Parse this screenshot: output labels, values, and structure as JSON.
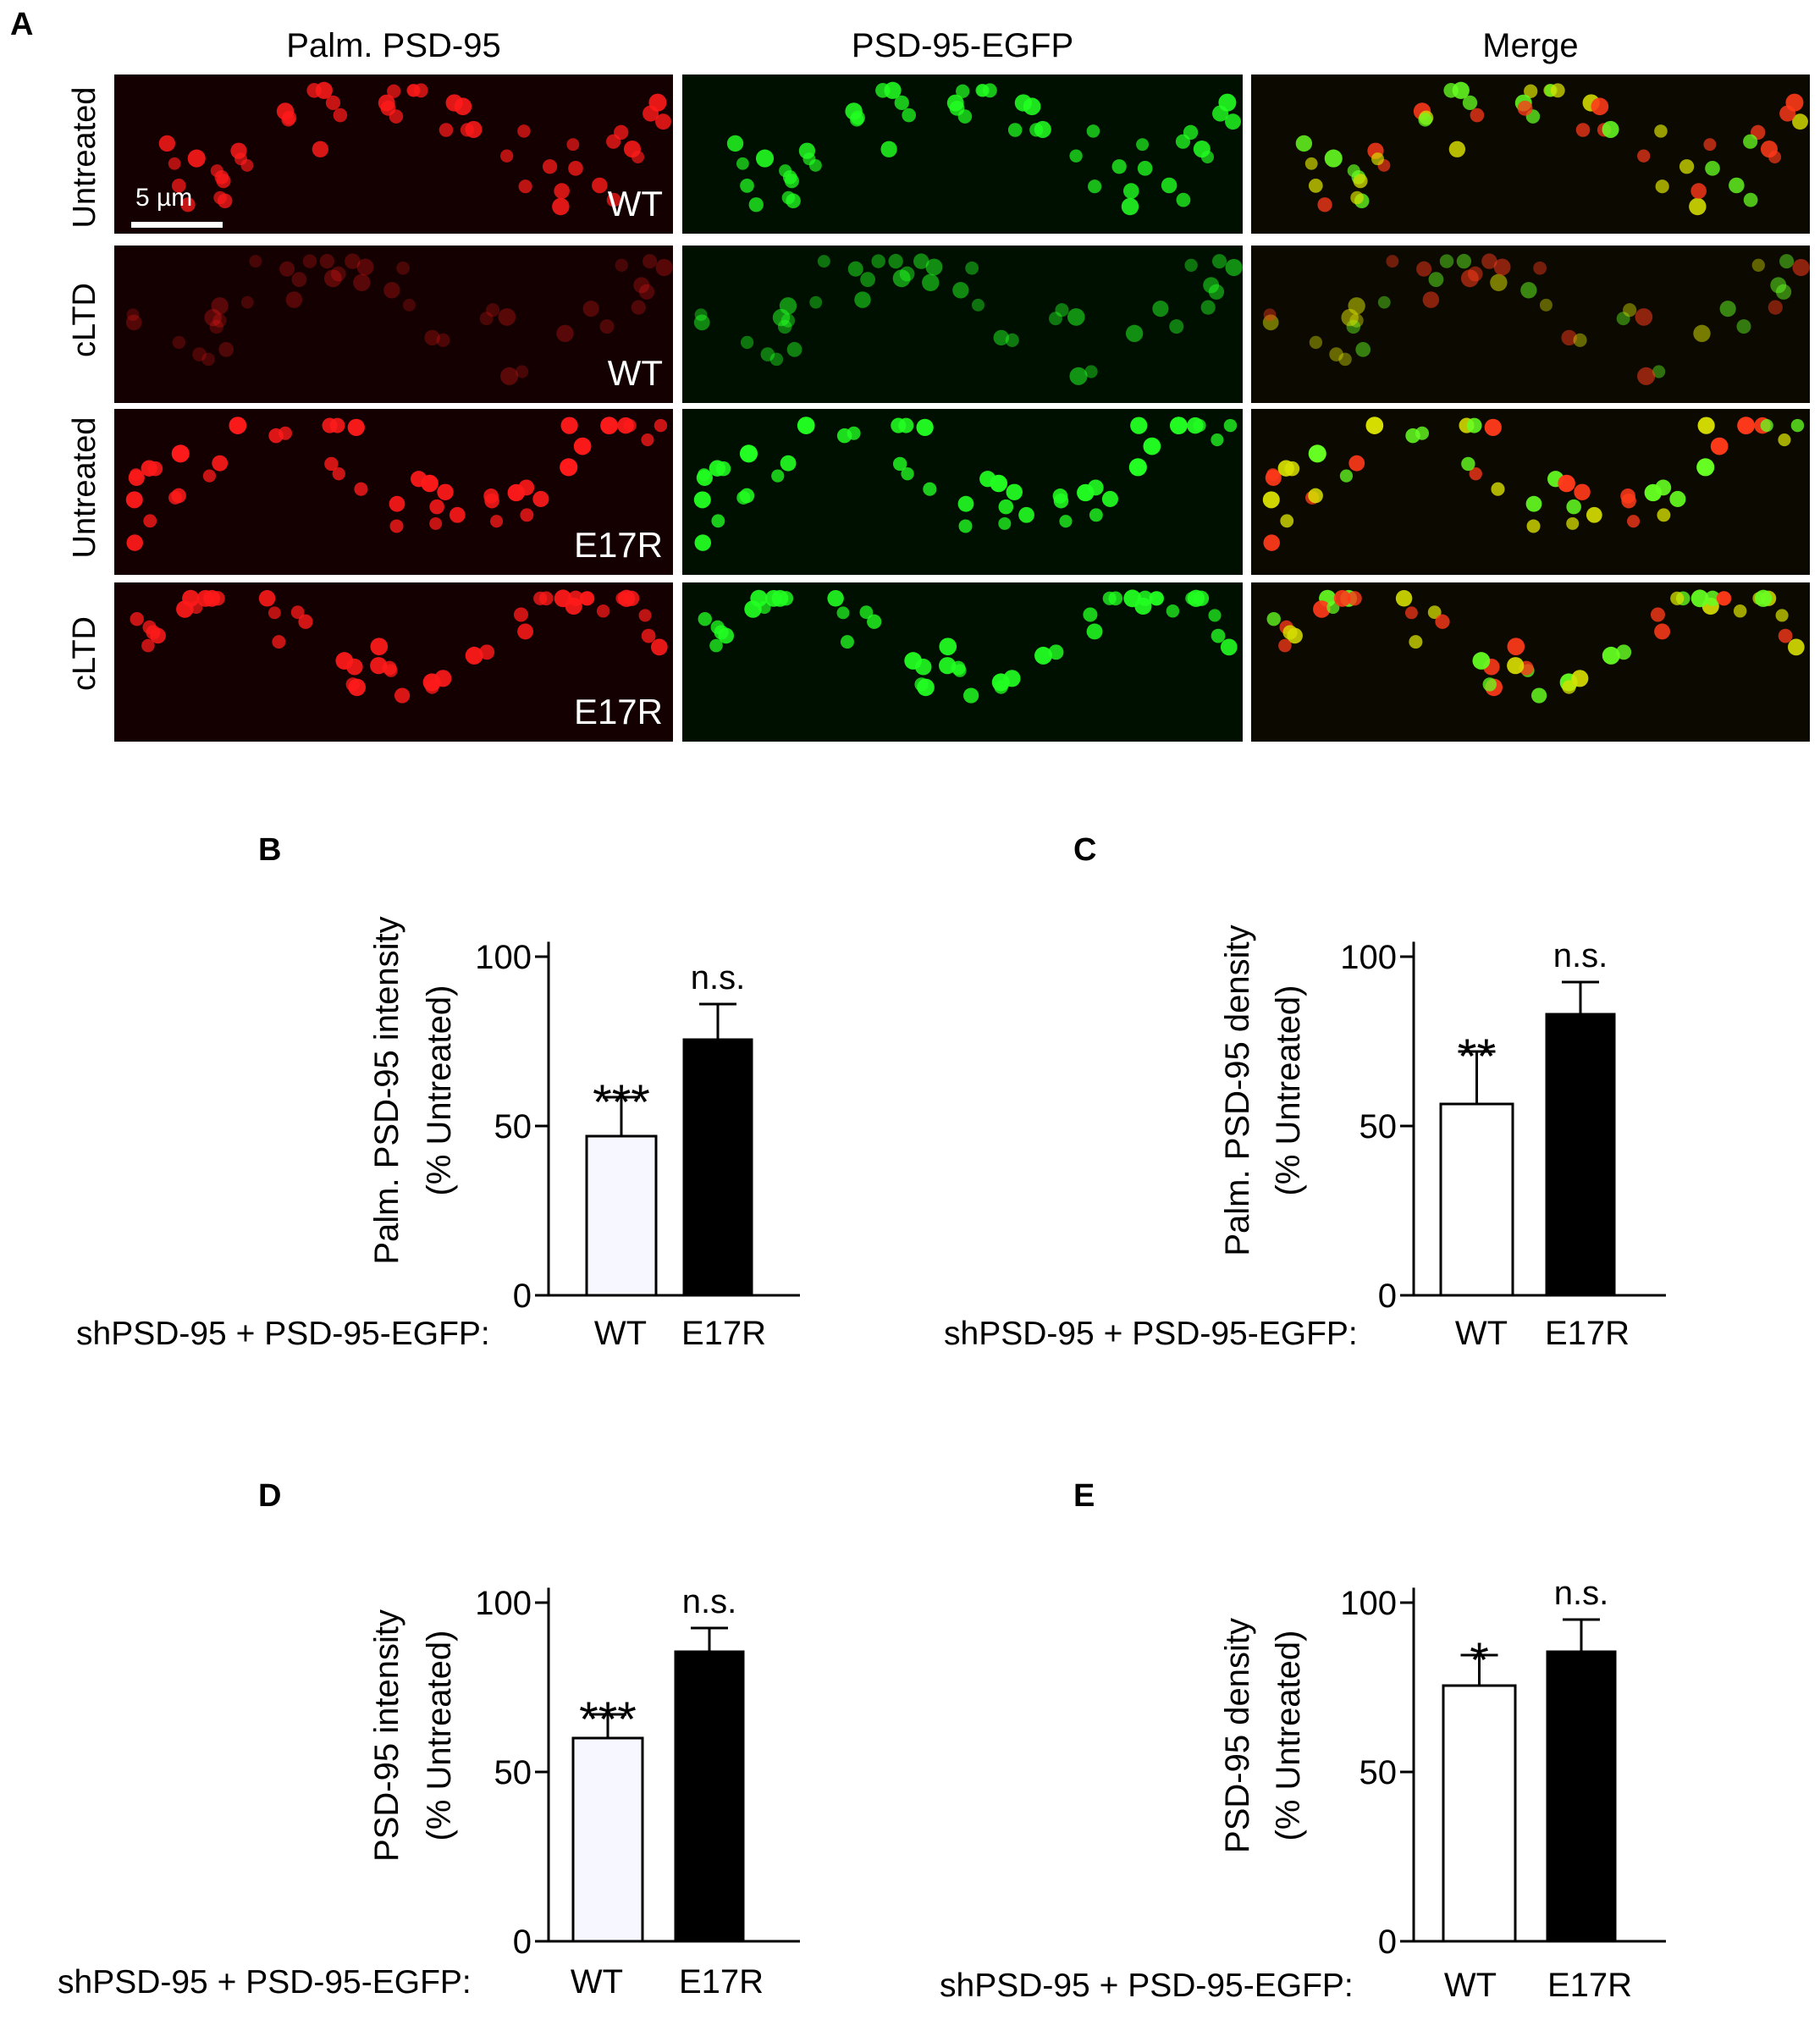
{
  "panel_a": {
    "letter": "A",
    "columns": [
      "Palm. PSD-95",
      "PSD-95-EGFP",
      "Merge"
    ],
    "rows": [
      {
        "condition": "Untreated",
        "tag": "WT",
        "intensity": 0.9
      },
      {
        "condition": "cLTD",
        "tag": "WT",
        "intensity": 0.3
      },
      {
        "condition": "Untreated",
        "tag": "E17R",
        "intensity": 1.0
      },
      {
        "condition": "cLTD",
        "tag": "E17R",
        "intensity": 0.95
      }
    ],
    "scale_bar": "5 µm",
    "channel_colors": {
      "red": "#ff1a1a",
      "green": "#22ff22",
      "merge": "#d4d000"
    }
  },
  "chart_data": [
    {
      "letter": "B",
      "type": "bar",
      "categories": [
        "WT",
        "E17R"
      ],
      "values": [
        47,
        75.5
      ],
      "errors": [
        11.5,
        10.5
      ],
      "significance": [
        "***",
        "n.s."
      ],
      "bar_fills": [
        "#f7f7ff",
        "#000000"
      ],
      "ylabel": [
        "Palm. PSD-95 intensity",
        "(% Untreated)"
      ],
      "x_caption": "shPSD-95 + PSD-95-EGFP:",
      "ylim": [
        0,
        120
      ],
      "yticks": [
        0,
        50,
        100
      ]
    },
    {
      "letter": "C",
      "type": "bar",
      "categories": [
        "WT",
        "E17R"
      ],
      "values": [
        56.5,
        83
      ],
      "errors": [
        15.5,
        9.5
      ],
      "significance": [
        "**",
        "n.s."
      ],
      "bar_fills": [
        "#ffffff",
        "#000000"
      ],
      "ylabel": [
        "Palm. PSD-95 density",
        "(% Untreated)"
      ],
      "x_caption": "shPSD-95 + PSD-95-EGFP:",
      "ylim": [
        0,
        120
      ],
      "yticks": [
        0,
        50,
        100
      ]
    },
    {
      "letter": "D",
      "type": "bar",
      "categories": [
        "WT",
        "E17R"
      ],
      "values": [
        60,
        85.5
      ],
      "errors": [
        7,
        7
      ],
      "significance": [
        "***",
        "n.s."
      ],
      "bar_fills": [
        "#f7f7ff",
        "#000000"
      ],
      "ylabel": [
        "PSD-95 intensity",
        "(% Untreated)"
      ],
      "x_caption": "shPSD-95 + PSD-95-EGFP:",
      "ylim": [
        0,
        120
      ],
      "yticks": [
        0,
        50,
        100
      ]
    },
    {
      "letter": "E",
      "type": "bar",
      "categories": [
        "WT",
        "E17R"
      ],
      "values": [
        75.5,
        85.5
      ],
      "errors": [
        9,
        9.5
      ],
      "significance": [
        "*",
        "n.s."
      ],
      "bar_fills": [
        "#ffffff",
        "#000000"
      ],
      "ylabel": [
        "PSD-95 density",
        "(% Untreated)"
      ],
      "x_caption": "shPSD-95 + PSD-95-EGFP:",
      "ylim": [
        0,
        120
      ],
      "yticks": [
        0,
        50,
        100
      ]
    }
  ]
}
